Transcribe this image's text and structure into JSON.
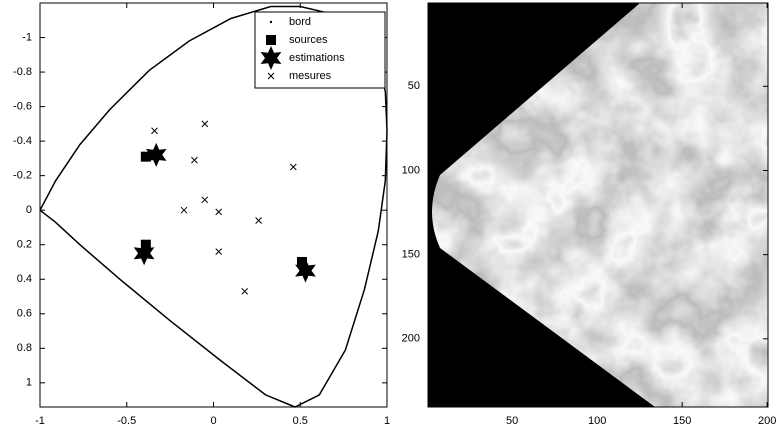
{
  "chart_data": [
    {
      "type": "scatter",
      "xlim": [
        -1,
        1
      ],
      "ylim": [
        -1.2,
        1.14
      ],
      "y_reversed": true,
      "xticks": [
        -1,
        -0.5,
        0,
        0.5,
        1
      ],
      "yticks": [
        -1,
        -0.8,
        -0.6,
        -0.4,
        -0.2,
        0,
        0.2,
        0.4,
        0.6,
        0.8,
        1
      ],
      "legend": "upper right",
      "series": [
        {
          "name": "bord",
          "marker": "line",
          "color": "#000000",
          "x": [
            -1,
            -0.91,
            -0.77,
            -0.6,
            -0.37,
            -0.14,
            0.1,
            0.33,
            0.5,
            0.67,
            0.82,
            0.93,
            0.99,
            1.0,
            0.99,
            0.95,
            0.87,
            0.76,
            0.61,
            0.47,
            0.3,
            0.04,
            -0.25,
            -0.54,
            -0.77,
            -0.91,
            -1
          ],
          "y": [
            0,
            -0.17,
            -0.38,
            -0.58,
            -0.81,
            -0.98,
            -1.11,
            -1.18,
            -1.18,
            -1.14,
            -1.05,
            -0.9,
            -0.69,
            -0.46,
            -0.17,
            0.12,
            0.46,
            0.81,
            1.07,
            1.14,
            1.07,
            0.87,
            0.64,
            0.4,
            0.2,
            0.07,
            0
          ]
        },
        {
          "name": "sources",
          "marker": "square",
          "color": "#000000",
          "x": [
            -0.39,
            -0.39,
            0.51
          ],
          "y": [
            -0.31,
            0.2,
            0.3
          ]
        },
        {
          "name": "estimations",
          "marker": "star",
          "color": "#000000",
          "x": [
            -0.33,
            -0.4,
            0.53
          ],
          "y": [
            -0.32,
            0.25,
            0.35
          ]
        },
        {
          "name": "mesures",
          "marker": "x",
          "color": "#000000",
          "x": [
            -0.34,
            -0.05,
            -0.11,
            0.46,
            -0.05,
            -0.17,
            0.03,
            0.26,
            0.03,
            0.18
          ],
          "y": [
            -0.46,
            -0.5,
            -0.29,
            -0.25,
            -0.06,
            0,
            0.01,
            0.06,
            0.24,
            0.47
          ]
        }
      ]
    },
    {
      "type": "image",
      "xlim": [
        0.5,
        200.5
      ],
      "ylim": [
        0.5,
        240.5
      ],
      "y_reversed": true,
      "xticks": [
        50,
        100,
        150,
        200
      ],
      "yticks": [
        50,
        100,
        150,
        200
      ]
    }
  ]
}
